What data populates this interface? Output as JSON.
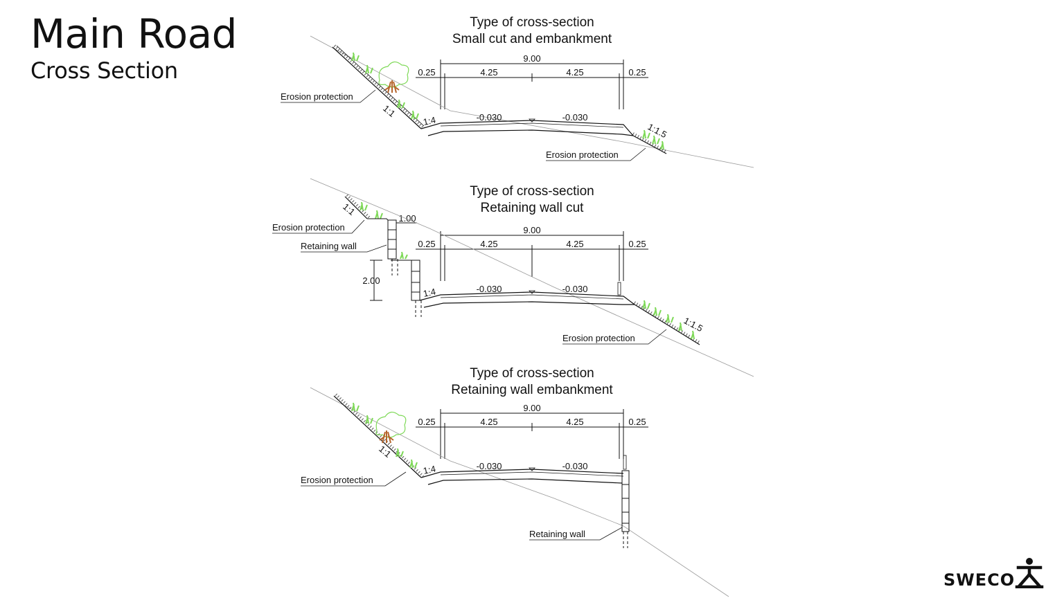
{
  "header": {
    "title": "Main Road",
    "subtitle": "Cross Section"
  },
  "brand": {
    "name": "SWECO",
    "mark_icon": "sweco-person-icon"
  },
  "colors": {
    "line": "#111111",
    "vegetation": "#7ed957",
    "tree_trunk": "#b5652b",
    "ground": "#9a9a9a"
  },
  "sections": [
    {
      "type_label": "Type of cross-section",
      "name": "Small cut and embankment",
      "dims": {
        "total": "9.00",
        "left_shoulder": "0.25",
        "left_lane": "4.25",
        "right_lane": "4.25",
        "right_shoulder": "0.25"
      },
      "cross_fall_left": "-0.030",
      "cross_fall_right": "-0.030",
      "slope_left": "1:1",
      "ditch_slope": "1:4",
      "slope_right": "1:1.5",
      "labels": [
        "Erosion protection",
        "Erosion protection"
      ]
    },
    {
      "type_label": "Type of cross-section",
      "name": "Retaining wall cut",
      "dims": {
        "total": "9.00",
        "left_shoulder": "0.25",
        "left_lane": "4.25",
        "right_lane": "4.25",
        "right_shoulder": "0.25",
        "wall_offset": "1.00",
        "wall_height": "2.00"
      },
      "cross_fall_left": "-0.030",
      "cross_fall_right": "-0.030",
      "slope_left": "1:1",
      "ditch_slope": "1:4",
      "slope_right": "1:1.5",
      "labels": [
        "Erosion protection",
        "Retaining wall",
        "Erosion protection"
      ]
    },
    {
      "type_label": "Type of cross-section",
      "name": "Retaining wall embankment",
      "dims": {
        "total": "9.00",
        "left_shoulder": "0.25",
        "left_lane": "4.25",
        "right_lane": "4.25",
        "right_shoulder": "0.25"
      },
      "cross_fall_left": "-0.030",
      "cross_fall_right": "-0.030",
      "slope_left": "1:1",
      "ditch_slope": "1:4",
      "labels": [
        "Erosion protection",
        "Retaining wall"
      ]
    }
  ]
}
